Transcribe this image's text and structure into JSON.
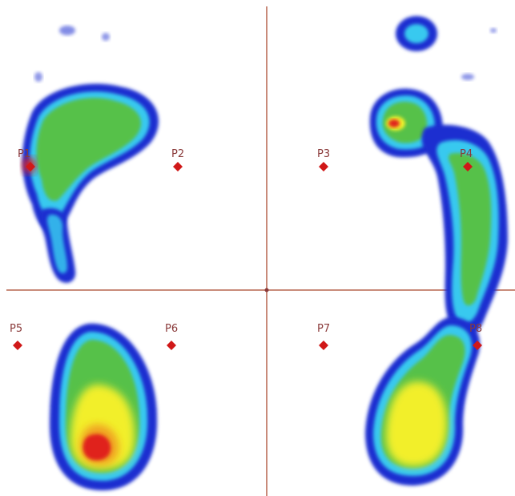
{
  "figure": {
    "sensors": [
      {
        "id": "p1",
        "label": "P1"
      },
      {
        "id": "p2",
        "label": "P2"
      },
      {
        "id": "p3",
        "label": "P3"
      },
      {
        "id": "p4",
        "label": "P4"
      },
      {
        "id": "p5",
        "label": "P5"
      },
      {
        "id": "p6",
        "label": "P6"
      },
      {
        "id": "p7",
        "label": "P7"
      },
      {
        "id": "p8",
        "label": "P8"
      }
    ],
    "colors": {
      "background": "#ffffff",
      "axis_lines": "#c98b7a",
      "pressure_low": "#1a2fd0",
      "pressure_low_mid": "#37c9ef",
      "pressure_mid": "#57c14a",
      "pressure_high": "#f2ef2a",
      "pressure_peak": "#e0221a",
      "sensor_marker": "#d01818"
    }
  }
}
